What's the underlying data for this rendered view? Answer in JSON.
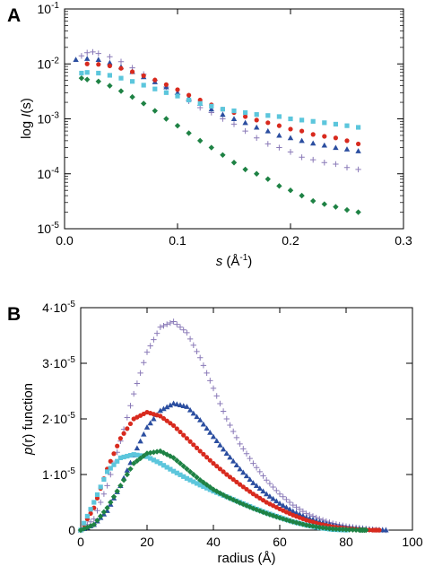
{
  "colors": {
    "purple": "#8a7ab8",
    "blue": "#2b4ea0",
    "red": "#d82a1e",
    "cyan": "#5cc6dc",
    "green": "#1e8244"
  },
  "chart_data": [
    {
      "panel_label": "A",
      "type": "scatter",
      "ylabel_prefix": "log ",
      "ylabel_italic": "I",
      "ylabel_suffix": "(s)",
      "xlabel_italic": "s",
      "xlabel_rest": " (Å",
      "xlabel_sup": "-1",
      "xlabel_end": ")",
      "xlim": [
        0.0,
        0.3
      ],
      "ylim": [
        1e-05,
        0.1
      ],
      "yscale": "log",
      "xticks": [
        {
          "value": 0.0,
          "label": "0.0"
        },
        {
          "value": 0.1,
          "label": "0.1"
        },
        {
          "value": 0.2,
          "label": "0.2"
        },
        {
          "value": 0.3,
          "label": "0.3"
        }
      ],
      "yticks": [
        {
          "value": 1e-05,
          "base": "10",
          "exp": "-5"
        },
        {
          "value": 0.0001,
          "base": "10",
          "exp": "-4"
        },
        {
          "value": 0.001,
          "base": "10",
          "exp": "-3"
        },
        {
          "value": 0.01,
          "base": "10",
          "exp": "-2"
        },
        {
          "value": 0.1,
          "base": "10",
          "exp": "-1"
        }
      ],
      "series": [
        {
          "marker": "plus",
          "color": "purple",
          "x": [
            0.015,
            0.02,
            0.025,
            0.03,
            0.04,
            0.05,
            0.06,
            0.07,
            0.08,
            0.09,
            0.1,
            0.11,
            0.12,
            0.13,
            0.14,
            0.15,
            0.16,
            0.17,
            0.18,
            0.19,
            0.2,
            0.21,
            0.22,
            0.23,
            0.24,
            0.25,
            0.26
          ],
          "y": [
            0.014,
            0.016,
            0.0165,
            0.0155,
            0.0135,
            0.011,
            0.0085,
            0.0065,
            0.005,
            0.0038,
            0.0028,
            0.0021,
            0.0016,
            0.0013,
            0.001,
            0.0008,
            0.0006,
            0.00045,
            0.00035,
            0.0003,
            0.00025,
            0.0002,
            0.00018,
            0.00016,
            0.00015,
            0.00013,
            0.00012
          ]
        },
        {
          "marker": "triangle",
          "color": "blue",
          "x": [
            0.01,
            0.02,
            0.03,
            0.04,
            0.05,
            0.06,
            0.07,
            0.08,
            0.09,
            0.1,
            0.11,
            0.12,
            0.13,
            0.14,
            0.15,
            0.16,
            0.17,
            0.18,
            0.19,
            0.2,
            0.21,
            0.22,
            0.23,
            0.24,
            0.25,
            0.26
          ],
          "y": [
            0.012,
            0.0125,
            0.012,
            0.0105,
            0.0088,
            0.0072,
            0.0058,
            0.0047,
            0.0038,
            0.003,
            0.0024,
            0.0019,
            0.0015,
            0.0012,
            0.001,
            0.00085,
            0.0007,
            0.0006,
            0.0005,
            0.00045,
            0.0004,
            0.00036,
            0.00033,
            0.0003,
            0.00028,
            0.00026
          ]
        },
        {
          "marker": "circle",
          "color": "red",
          "x": [
            0.02,
            0.03,
            0.04,
            0.05,
            0.06,
            0.07,
            0.08,
            0.09,
            0.1,
            0.11,
            0.12,
            0.13,
            0.14,
            0.15,
            0.16,
            0.17,
            0.18,
            0.19,
            0.2,
            0.21,
            0.22,
            0.23,
            0.24,
            0.25,
            0.26
          ],
          "y": [
            0.01,
            0.0098,
            0.0092,
            0.0083,
            0.0072,
            0.0061,
            0.0051,
            0.0042,
            0.0034,
            0.0027,
            0.0022,
            0.0018,
            0.0015,
            0.0013,
            0.0011,
            0.00095,
            0.00085,
            0.00075,
            0.00065,
            0.0006,
            0.00052,
            0.00048,
            0.00045,
            0.0004,
            0.00035
          ]
        },
        {
          "marker": "square",
          "color": "cyan",
          "x": [
            0.015,
            0.02,
            0.03,
            0.04,
            0.05,
            0.06,
            0.07,
            0.08,
            0.09,
            0.1,
            0.11,
            0.12,
            0.13,
            0.14,
            0.15,
            0.16,
            0.17,
            0.18,
            0.19,
            0.2,
            0.21,
            0.22,
            0.23,
            0.24,
            0.25,
            0.26
          ],
          "y": [
            0.0068,
            0.007,
            0.0068,
            0.0062,
            0.0055,
            0.0048,
            0.0041,
            0.0035,
            0.003,
            0.0026,
            0.0022,
            0.0019,
            0.0017,
            0.0015,
            0.0014,
            0.0013,
            0.0012,
            0.00115,
            0.0011,
            0.001,
            0.00095,
            0.0009,
            0.00085,
            0.0008,
            0.00075,
            0.0007
          ]
        },
        {
          "marker": "diamond",
          "color": "green",
          "x": [
            0.015,
            0.02,
            0.03,
            0.04,
            0.05,
            0.06,
            0.07,
            0.08,
            0.09,
            0.1,
            0.11,
            0.12,
            0.13,
            0.14,
            0.15,
            0.16,
            0.17,
            0.18,
            0.19,
            0.2,
            0.21,
            0.22,
            0.23,
            0.24,
            0.25,
            0.26
          ],
          "y": [
            0.0055,
            0.0052,
            0.0048,
            0.004,
            0.0032,
            0.0025,
            0.0019,
            0.0014,
            0.001,
            0.00075,
            0.00055,
            0.0004,
            0.0003,
            0.00022,
            0.00016,
            0.00012,
            0.0001,
            8e-05,
            6e-05,
            5e-05,
            4e-05,
            3.2e-05,
            2.8e-05,
            2.5e-05,
            2.2e-05,
            2e-05
          ]
        }
      ]
    },
    {
      "panel_label": "B",
      "type": "scatter",
      "ylabel_prefix": "",
      "ylabel_italic": "p",
      "ylabel_suffix": "(r) function",
      "xlabel": "radius (Å)",
      "xlim": [
        0,
        100
      ],
      "ylim": [
        0,
        4e-05
      ],
      "xticks": [
        {
          "value": 0,
          "label": "0"
        },
        {
          "value": 20,
          "label": "20"
        },
        {
          "value": 40,
          "label": "40"
        },
        {
          "value": 60,
          "label": "60"
        },
        {
          "value": 80,
          "label": "80"
        },
        {
          "value": 100,
          "label": "100"
        }
      ],
      "yticks": [
        {
          "value": 0,
          "label": "0"
        },
        {
          "value": 1e-05,
          "label": "1·10",
          "exp": "-5"
        },
        {
          "value": 2e-05,
          "label": "2·10",
          "exp": "-5"
        },
        {
          "value": 3e-05,
          "label": "3·10",
          "exp": "-5"
        },
        {
          "value": 4e-05,
          "label": "4·10",
          "exp": "-5"
        }
      ],
      "series": [
        {
          "marker": "plus",
          "color": "purple",
          "x": [
            0,
            4,
            8,
            12,
            16,
            20,
            24,
            28,
            32,
            36,
            40,
            44,
            48,
            52,
            56,
            60,
            64,
            68,
            72,
            76,
            80,
            84,
            88,
            92
          ],
          "y": [
            0,
            2e-06,
            8e-06,
            1.6e-05,
            2.45e-05,
            3.2e-05,
            3.65e-05,
            3.75e-05,
            3.55e-05,
            3.1e-05,
            2.55e-05,
            2e-05,
            1.55e-05,
            1.2e-05,
            9e-06,
            6.5e-06,
            4.5e-06,
            3e-06,
            2e-06,
            1.2e-06,
            7e-07,
            4e-07,
            1e-07,
            0
          ]
        },
        {
          "marker": "triangle",
          "color": "blue",
          "x": [
            0,
            4,
            8,
            12,
            16,
            20,
            24,
            28,
            32,
            36,
            40,
            44,
            48,
            52,
            56,
            60,
            64,
            68,
            72,
            76,
            80,
            84,
            88,
            92
          ],
          "y": [
            0,
            1e-06,
            3.5e-06,
            8e-06,
            1.35e-05,
            1.85e-05,
            2.15e-05,
            2.28e-05,
            2.22e-05,
            1.98e-05,
            1.68e-05,
            1.38e-05,
            1.1e-05,
            8.5e-06,
            6.5e-06,
            4.8e-06,
            3.4e-06,
            2.3e-06,
            1.5e-06,
            9e-07,
            5e-07,
            3e-07,
            1e-07,
            0
          ]
        },
        {
          "marker": "circle",
          "color": "red",
          "x": [
            0,
            4,
            8,
            12,
            16,
            20,
            24,
            28,
            32,
            36,
            40,
            44,
            48,
            52,
            56,
            60,
            64,
            68,
            72,
            76,
            80,
            84,
            88,
            90
          ],
          "y": [
            0,
            4e-06,
            1.1e-05,
            1.65e-05,
            2e-05,
            2.12e-05,
            2.05e-05,
            1.88e-05,
            1.65e-05,
            1.42e-05,
            1.2e-05,
            1e-05,
            8.2e-06,
            6.5e-06,
            5e-06,
            3.8e-06,
            2.7e-06,
            1.8e-06,
            1.1e-06,
            6e-07,
            3e-07,
            1e-07,
            0,
            0
          ]
        },
        {
          "marker": "square",
          "color": "cyan",
          "x": [
            0,
            4,
            8,
            12,
            16,
            20,
            24,
            28,
            32,
            36,
            40,
            44,
            48,
            52,
            56,
            60,
            64,
            68,
            72,
            76,
            80
          ],
          "y": [
            0,
            5e-06,
            1.05e-05,
            1.3e-05,
            1.36e-05,
            1.32e-05,
            1.2e-05,
            1.06e-05,
            9.3e-06,
            8.1e-06,
            7e-06,
            6e-06,
            5e-06,
            4e-06,
            3.1e-06,
            2.3e-06,
            1.5e-06,
            9e-07,
            4e-07,
            1e-07,
            0
          ]
        },
        {
          "marker": "diamond",
          "color": "green",
          "x": [
            0,
            4,
            8,
            12,
            16,
            20,
            24,
            28,
            32,
            36,
            40,
            44,
            48,
            52,
            56,
            60,
            64,
            68,
            72,
            76,
            80,
            84,
            86
          ],
          "y": [
            0,
            1e-06,
            4e-06,
            8e-06,
            1.2e-05,
            1.38e-05,
            1.42e-05,
            1.3e-05,
            1.1e-05,
            9e-06,
            7.3e-06,
            6e-06,
            4.9e-06,
            3.9e-06,
            3e-06,
            2.2e-06,
            1.5e-06,
            9e-07,
            5e-07,
            2e-07,
            1e-07,
            0,
            0
          ]
        }
      ]
    }
  ]
}
